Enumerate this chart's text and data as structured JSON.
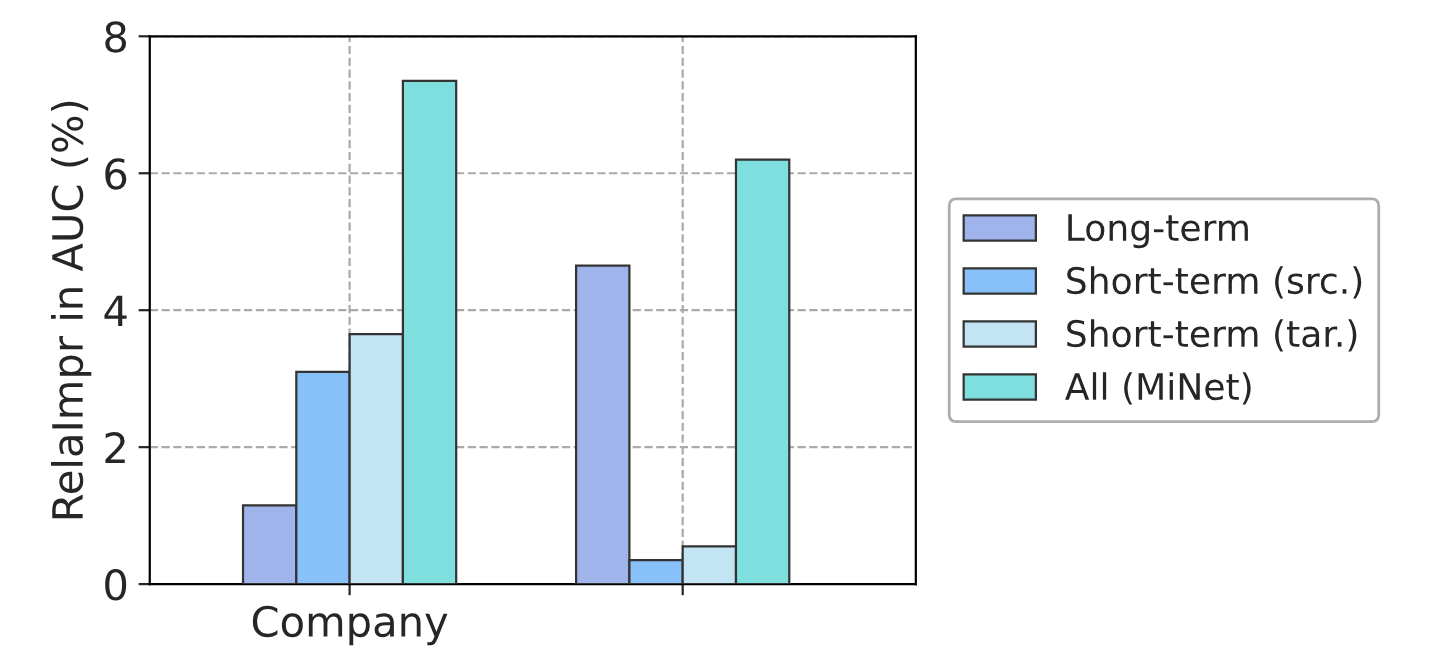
{
  "chart_data": {
    "type": "bar",
    "ylabel": "RelaImpr in AUC (%)",
    "categories": [
      "Company",
      null
    ],
    "series": [
      {
        "name": "Long-term",
        "color": "#a0b4ec",
        "values": [
          1.15,
          4.65
        ]
      },
      {
        "name": "Short-term (src.)",
        "color": "#88c1fa",
        "values": [
          3.1,
          0.35
        ]
      },
      {
        "name": "Short-term (tar.)",
        "color": "#c3e5f3",
        "values": [
          3.65,
          0.55
        ]
      },
      {
        "name": "All (MiNet)",
        "color": "#7fdfde",
        "values": [
          7.35,
          6.2
        ]
      }
    ],
    "ylim": [
      0,
      8
    ],
    "yticks": [
      0,
      2,
      4,
      6,
      8
    ],
    "grid": true,
    "legend": "right"
  }
}
